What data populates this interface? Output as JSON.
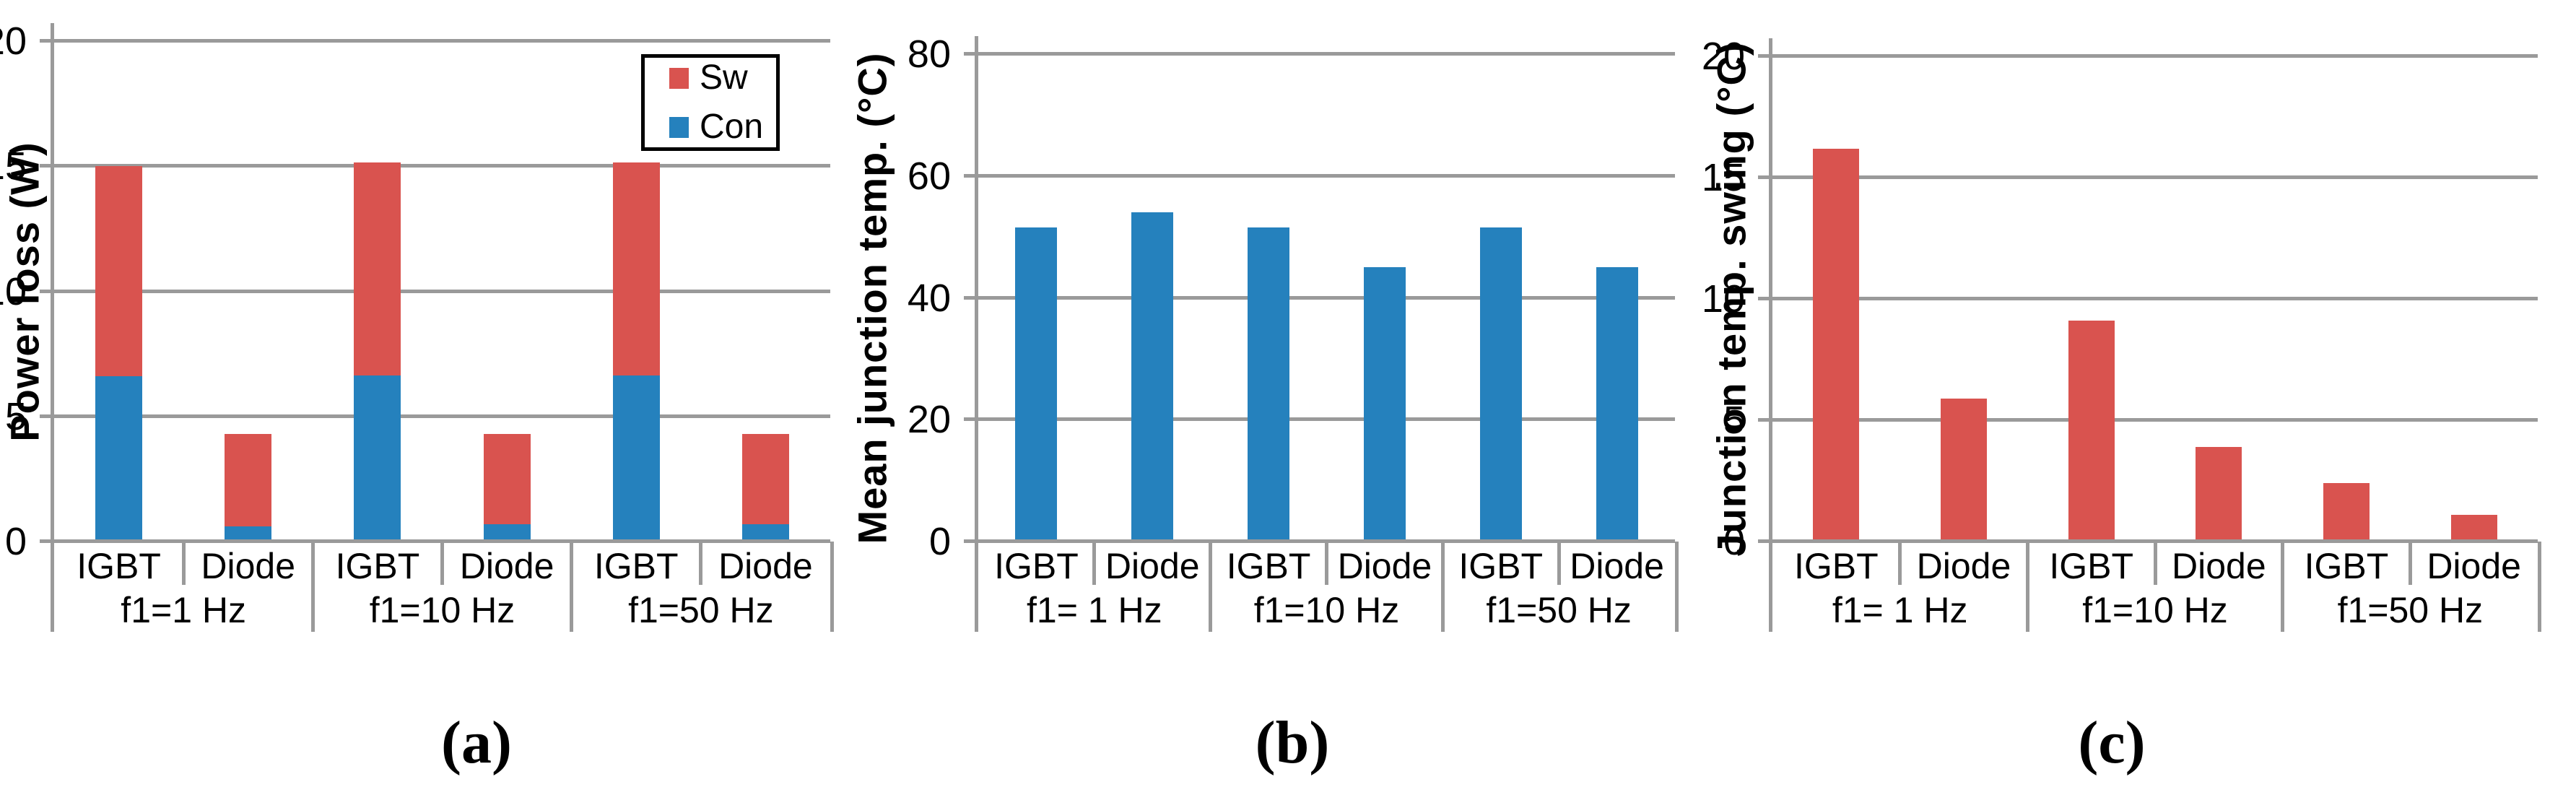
{
  "figure": {
    "background": "#ffffff",
    "grid_color": "#9a9a9a",
    "text_color": "#000000"
  },
  "chart_data": [
    {
      "id": "a",
      "type": "bar",
      "stacked": true,
      "caption": "(a)",
      "y_title": "Power loss (W)",
      "ylim": [
        0,
        20
      ],
      "yticks": [
        0,
        5,
        10,
        15,
        20
      ],
      "grid": true,
      "categories": [
        "IGBT",
        "Diode",
        "IGBT",
        "Diode",
        "IGBT",
        "Diode"
      ],
      "group_labels": [
        "f1=1 Hz",
        "f1=10 Hz",
        "f1=50 Hz"
      ],
      "series": [
        {
          "name": "Con",
          "color": "#2581bd",
          "values": [
            6.6,
            0.6,
            6.65,
            0.68,
            6.65,
            0.68
          ]
        },
        {
          "name": "Sw",
          "color": "#d9534f",
          "values": [
            8.4,
            3.7,
            8.5,
            3.62,
            8.5,
            3.62
          ]
        }
      ],
      "stack_totals": [
        15.0,
        4.3,
        15.15,
        4.3,
        15.15,
        4.3
      ],
      "legend": {
        "visible": true,
        "position": "top-right",
        "items": [
          {
            "label": "Sw",
            "color": "#d9534f"
          },
          {
            "label": "Con",
            "color": "#2581bd"
          }
        ]
      }
    },
    {
      "id": "b",
      "type": "bar",
      "stacked": false,
      "caption": "(b)",
      "y_title": "Mean junction temp. (°C)",
      "ylim": [
        0,
        80
      ],
      "yticks": [
        0,
        20,
        40,
        60,
        80
      ],
      "grid": true,
      "categories": [
        "IGBT",
        "Diode",
        "IGBT",
        "Diode",
        "IGBT",
        "Diode"
      ],
      "group_labels": [
        "f1= 1 Hz",
        "f1=10 Hz",
        "f1=50 Hz"
      ],
      "series": [
        {
          "name": "Mean junction temp.",
          "color": "#2581bd",
          "values": [
            51.5,
            54,
            51.5,
            45,
            51.5,
            45
          ]
        }
      ],
      "legend": {
        "visible": false,
        "position": "",
        "items": []
      }
    },
    {
      "id": "c",
      "type": "bar",
      "stacked": false,
      "caption": "(c)",
      "y_title": "Junction temp. swing (°C)",
      "ylim": [
        0,
        20
      ],
      "yticks": [
        0,
        5,
        10,
        15,
        20
      ],
      "grid": true,
      "categories": [
        "IGBT",
        "Diode",
        "IGBT",
        "Diode",
        "IGBT",
        "Diode"
      ],
      "group_labels": [
        "f1= 1 Hz",
        "f1=10 Hz",
        "f1=50 Hz"
      ],
      "series": [
        {
          "name": "Junction temp. swing",
          "color": "#d9534f",
          "values": [
            16.2,
            5.9,
            9.1,
            3.9,
            2.4,
            1.1
          ]
        }
      ],
      "legend": {
        "visible": false,
        "position": "",
        "items": []
      }
    }
  ]
}
